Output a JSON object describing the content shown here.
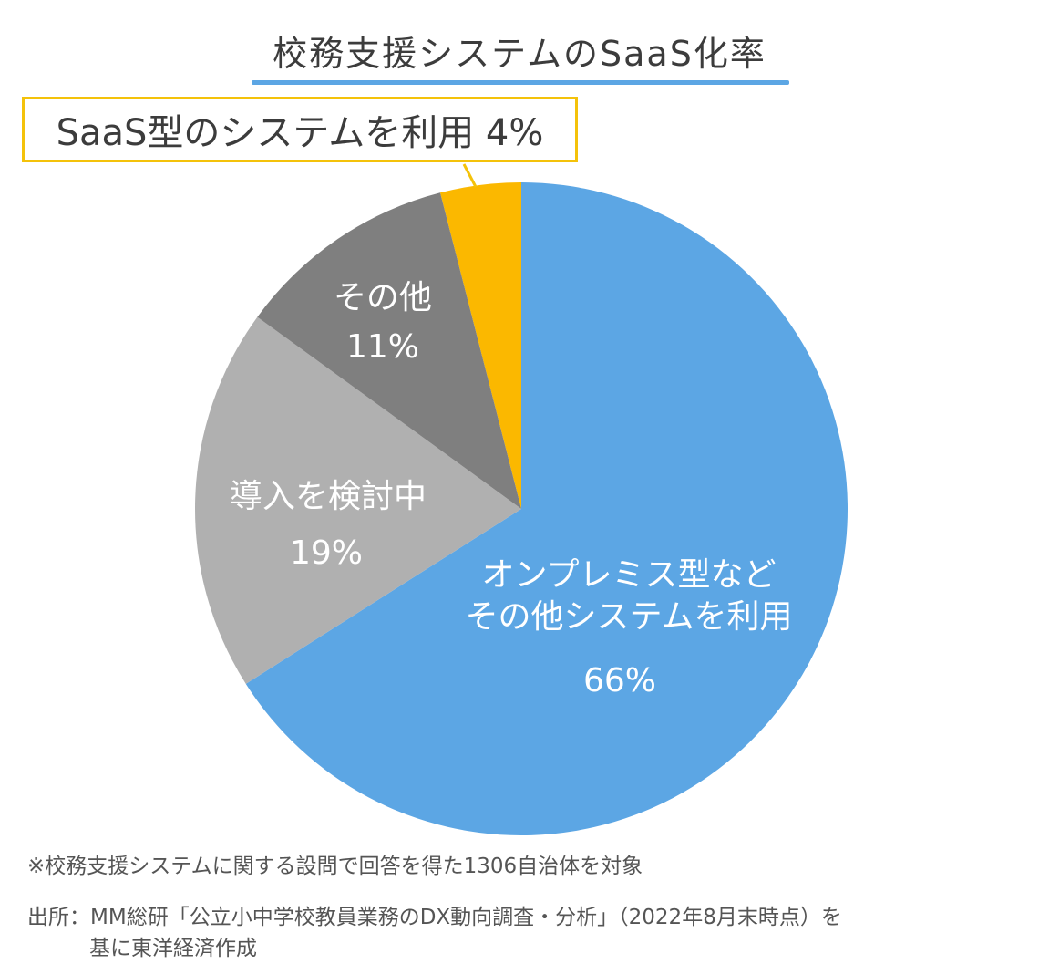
{
  "chart_data": {
    "type": "pie",
    "title": "校務支援システムのSaaS化率",
    "slices": [
      {
        "label": "SaaS型のシステムを利用",
        "value": 4,
        "display": "4%",
        "color": "#fbb800"
      },
      {
        "label": "オンプレミス型など",
        "label_line2": "その他システムを利用",
        "value": 66,
        "display": "66%",
        "color": "#5ca6e4"
      },
      {
        "label": "導入を検討中",
        "value": 19,
        "display": "19%",
        "color": "#b0b0b0"
      },
      {
        "label": "その他",
        "value": 11,
        "display": "11%",
        "color": "#7f7f7f"
      }
    ],
    "callout": "SaaS型のシステムを利用 4%",
    "start_angle_deg": 0,
    "direction": "clockwise"
  },
  "footnotes": {
    "note": "※校務支援システムに関する設問で回答を得た1306自治体を対象",
    "source_line1": "出所：MM総研「公立小中学校教員業務のDX動向調査・分析」（2022年8月末時点）を",
    "source_line2": "基に東洋経済作成"
  }
}
